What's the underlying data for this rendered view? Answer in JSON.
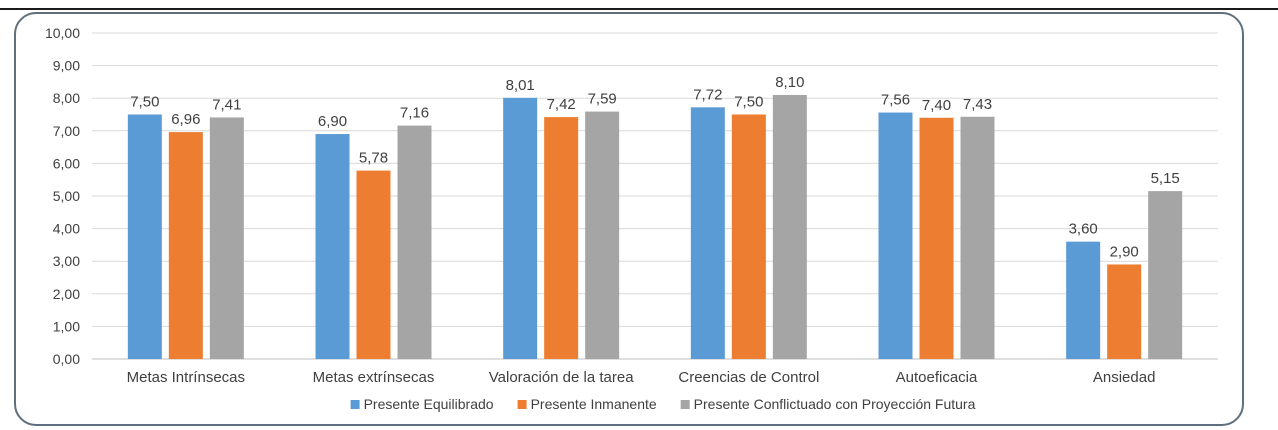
{
  "chart_data": {
    "type": "bar",
    "title": "",
    "xlabel": "",
    "ylabel": "",
    "ylim": [
      0,
      10
    ],
    "ytick_labels": [
      "0,00",
      "1,00",
      "2,00",
      "3,00",
      "4,00",
      "5,00",
      "6,00",
      "7,00",
      "8,00",
      "9,00",
      "10,00"
    ],
    "grid": true,
    "legend_position": "bottom",
    "categories": [
      "Metas Intrínsecas",
      "Metas extrínsecas",
      "Valoración de la tarea",
      "Creencias de Control",
      "Autoeficacia",
      "Ansiedad"
    ],
    "series": [
      {
        "name": "Presente Equilibrado",
        "color": "#5b9bd5",
        "values": [
          7.5,
          6.9,
          8.01,
          7.72,
          7.56,
          3.6
        ],
        "labels": [
          "7,50",
          "6,90",
          "8,01",
          "7,72",
          "7,56",
          "3,60"
        ]
      },
      {
        "name": "Presente Inmanente",
        "color": "#ed7d31",
        "values": [
          6.96,
          5.78,
          7.42,
          7.5,
          7.4,
          2.9
        ],
        "labels": [
          "6,96",
          "5,78",
          "7,42",
          "7,50",
          "7,40",
          "2,90"
        ]
      },
      {
        "name": "Presente Conflictuado con Proyección Futura",
        "color": "#a5a5a5",
        "values": [
          7.41,
          7.16,
          7.59,
          8.1,
          7.43,
          5.15
        ],
        "labels": [
          "7,41",
          "7,16",
          "7,59",
          "8,10",
          "7,43",
          "5,15"
        ]
      }
    ]
  }
}
